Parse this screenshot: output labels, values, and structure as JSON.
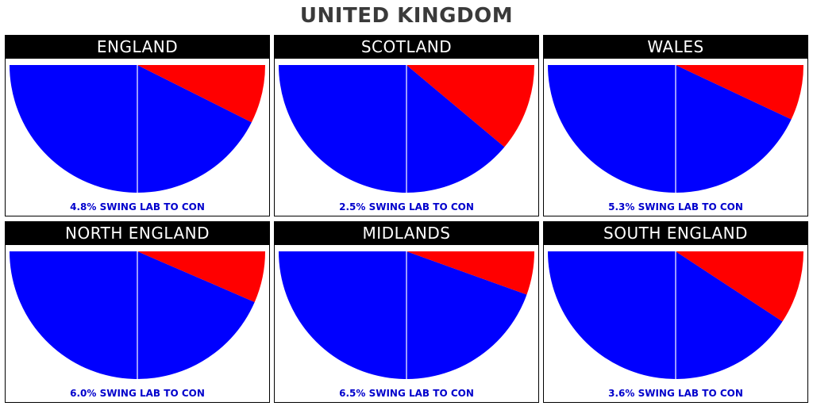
{
  "title": "UNITED KINGDOM",
  "colors": {
    "lab": "#0000ff",
    "con": "#ff0000",
    "divider": "#ffffff",
    "label_text": "#0000cc"
  },
  "chart_data": [
    {
      "type": "pie",
      "title": "ENGLAND",
      "swing": 4.8,
      "label": "4.8% SWING LAB TO CON",
      "slices": [
        {
          "party": "LAB",
          "value": 0.852
        },
        {
          "party": "CON",
          "value": 0.148
        }
      ]
    },
    {
      "type": "pie",
      "title": "SCOTLAND",
      "swing": 2.5,
      "label": "2.5% SWING LAB TO CON",
      "slices": [
        {
          "party": "LAB",
          "value": 0.778
        },
        {
          "party": "CON",
          "value": 0.222
        }
      ]
    },
    {
      "type": "pie",
      "title": "WALES",
      "swing": 5.3,
      "label": "5.3% SWING LAB TO CON",
      "slices": [
        {
          "party": "LAB",
          "value": 0.86
        },
        {
          "party": "CON",
          "value": 0.14
        }
      ]
    },
    {
      "type": "pie",
      "title": "NORTH ENGLAND",
      "swing": 6.0,
      "label": "6.0% SWING LAB TO CON",
      "slices": [
        {
          "party": "LAB",
          "value": 0.87
        },
        {
          "party": "CON",
          "value": 0.13
        }
      ]
    },
    {
      "type": "pie",
      "title": "MIDLANDS",
      "swing": 6.5,
      "label": "6.5% SWING LAB TO CON",
      "slices": [
        {
          "party": "LAB",
          "value": 0.89
        },
        {
          "party": "CON",
          "value": 0.11
        }
      ]
    },
    {
      "type": "pie",
      "title": "SOUTH ENGLAND",
      "swing": 3.6,
      "label": "3.6% SWING LAB TO CON",
      "slices": [
        {
          "party": "LAB",
          "value": 0.815
        },
        {
          "party": "CON",
          "value": 0.185
        }
      ]
    }
  ]
}
